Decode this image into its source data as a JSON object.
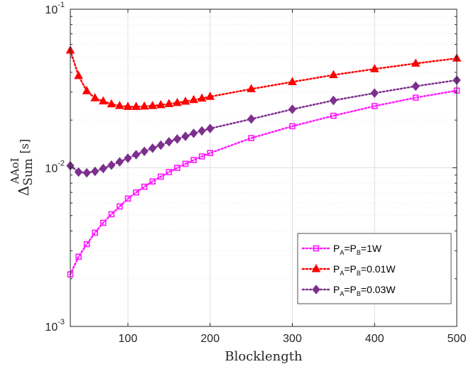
{
  "chart_data": {
    "type": "line",
    "title": "",
    "xlabel": "Blocklength",
    "ylabel": {
      "base": "Δ",
      "sub": "Sum",
      "sup": "AAoI",
      "unit": "[s]"
    },
    "xlim": [
      30,
      500
    ],
    "ylim": [
      0.001,
      0.1
    ],
    "yscale": "log",
    "grid": true,
    "x_ticks": [
      100,
      200,
      300,
      400,
      500
    ],
    "x_tick_labels": [
      "100",
      "200",
      "300",
      "400",
      "500"
    ],
    "y_ticks": [
      0.001,
      0.01,
      0.1
    ],
    "y_tick_labels": [
      {
        "base": "10",
        "exp": "-3"
      },
      {
        "base": "10",
        "exp": "-2"
      },
      {
        "base": "10",
        "exp": "-1"
      }
    ],
    "legend_position": "bottom-right",
    "series": [
      {
        "legend": {
          "P1": "P",
          "s1": "A",
          "eq1": "=",
          "P2": "P",
          "s2": "B",
          "val": "=1W"
        },
        "color": "#ff1aff",
        "marker": "square",
        "x": [
          30,
          40,
          50,
          60,
          70,
          80,
          90,
          100,
          110,
          120,
          130,
          140,
          150,
          160,
          170,
          180,
          190,
          200,
          250,
          300,
          350,
          400,
          450,
          500
        ],
        "y": [
          0.00213,
          0.00275,
          0.0033,
          0.0039,
          0.0045,
          0.0051,
          0.0057,
          0.0064,
          0.007,
          0.0076,
          0.0082,
          0.0088,
          0.0094,
          0.01,
          0.0106,
          0.0112,
          0.0118,
          0.0124,
          0.0154,
          0.0183,
          0.0213,
          0.0245,
          0.0277,
          0.0307
        ]
      },
      {
        "legend": {
          "P1": "P",
          "s1": "A",
          "eq1": "=",
          "P2": "P",
          "s2": "B",
          "val": "=0.01W"
        },
        "color": "#ff0000",
        "marker": "triangle",
        "x": [
          30,
          40,
          50,
          60,
          70,
          80,
          90,
          100,
          110,
          120,
          130,
          140,
          150,
          160,
          170,
          180,
          190,
          200,
          250,
          300,
          350,
          400,
          450,
          500
        ],
        "y": [
          0.055,
          0.038,
          0.0305,
          0.0275,
          0.0263,
          0.0252,
          0.0246,
          0.0243,
          0.0243,
          0.0244,
          0.0246,
          0.0249,
          0.0253,
          0.0257,
          0.0262,
          0.0268,
          0.0274,
          0.0281,
          0.0314,
          0.0348,
          0.0385,
          0.042,
          0.0455,
          0.049
        ]
      },
      {
        "legend": {
          "P1": "P",
          "s1": "A",
          "eq1": "=",
          "P2": "P",
          "s2": "B",
          "val": "=0.03W"
        },
        "color": "#7e2f8e",
        "marker": "diamond",
        "x": [
          30,
          40,
          50,
          60,
          70,
          80,
          90,
          100,
          110,
          120,
          130,
          140,
          150,
          160,
          170,
          180,
          190,
          200,
          250,
          300,
          350,
          400,
          450,
          500
        ],
        "y": [
          0.0103,
          0.0094,
          0.0093,
          0.0095,
          0.0099,
          0.0104,
          0.0109,
          0.0115,
          0.0121,
          0.0127,
          0.0133,
          0.0139,
          0.0146,
          0.0152,
          0.0158,
          0.0165,
          0.0171,
          0.0177,
          0.0203,
          0.0234,
          0.0266,
          0.0296,
          0.0327,
          0.0357
        ]
      }
    ]
  }
}
